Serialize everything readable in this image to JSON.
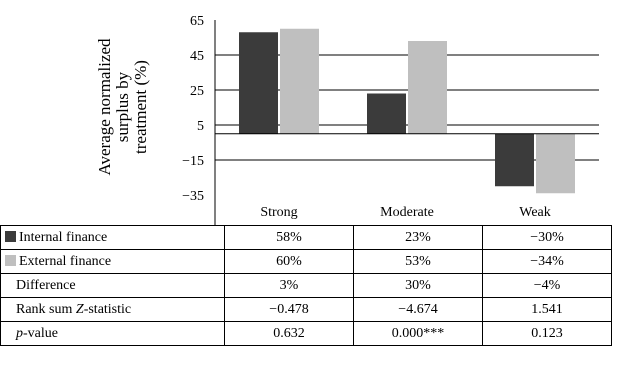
{
  "chart_data": {
    "type": "bar",
    "ylabel_lines": [
      "Average normalized",
      "surplus by",
      "treatment (%)"
    ],
    "ylim": [
      -35,
      65
    ],
    "yticks": [
      65,
      45,
      25,
      5,
      -15,
      -35
    ],
    "ytick_labels": [
      "65",
      "45",
      "25",
      "5",
      "−15",
      "−35"
    ],
    "categories": [
      "Strong",
      "Moderate",
      "Weak"
    ],
    "series": [
      {
        "name": "Internal finance",
        "color": "#3b3b3b",
        "values": [
          58,
          23,
          -30
        ]
      },
      {
        "name": "External finance",
        "color": "#bfbfbf",
        "values": [
          60,
          53,
          -34
        ]
      }
    ],
    "grid": true
  },
  "table": {
    "rows": [
      {
        "label": "Internal finance",
        "swatch": "#3b3b3b",
        "values": [
          "58%",
          "23%",
          "−30%"
        ]
      },
      {
        "label": "External finance",
        "swatch": "#bfbfbf",
        "values": [
          "60%",
          "53%",
          "−34%"
        ]
      },
      {
        "label": "Difference",
        "values": [
          "3%",
          "30%",
          "−4%"
        ]
      },
      {
        "label_pre": "Rank sum ",
        "label_em": "Z",
        "label_post": "-statistic",
        "values": [
          "−0.478",
          "−4.674",
          "1.541"
        ]
      },
      {
        "label_em": "p",
        "label_post": "-value",
        "values": [
          "0.632",
          "0.000***",
          "0.123"
        ]
      }
    ]
  }
}
